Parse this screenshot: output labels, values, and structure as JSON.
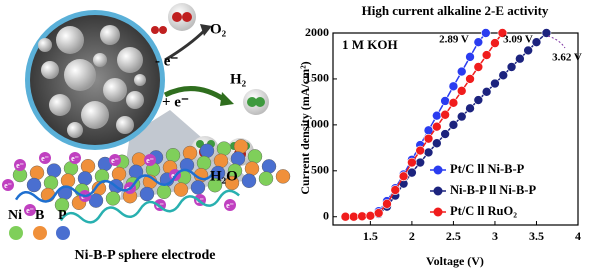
{
  "illustration": {
    "minus_e": "- e⁻",
    "plus_e": "+ e⁻",
    "o2": "O₂",
    "h2": "H₂",
    "h2o": "H₂O",
    "electron": "e⁻",
    "legend": [
      "Ni",
      "B",
      "P"
    ],
    "caption": "Ni-B-P sphere electrode"
  },
  "chart_data": {
    "type": "line",
    "title": "High current alkaline 2-E activity",
    "x_label": "Voltage (V)",
    "y_label": "Current density (mA/cm²)",
    "annotations": [
      "1 M KOH",
      "2.89 V",
      "3.09 V",
      "3.62 V"
    ],
    "xlim": [
      1.05,
      4.0
    ],
    "xticks": [
      1.5,
      2.0,
      2.5,
      3.0,
      3.5,
      4.0
    ],
    "ylim": [
      -90,
      2000
    ],
    "yticks": [
      0,
      500,
      1000,
      1500,
      2000
    ],
    "series": [
      {
        "name": "Pt/C ll Ni-B-P",
        "color": "#2a3cf0",
        "x": [
          1.2,
          1.3,
          1.4,
          1.5,
          1.6,
          1.7,
          1.8,
          1.9,
          2.0,
          2.1,
          2.2,
          2.3,
          2.4,
          2.5,
          2.6,
          2.7,
          2.8,
          2.89
        ],
        "values": [
          0,
          0,
          5,
          15,
          60,
          170,
          310,
          460,
          620,
          780,
          940,
          1100,
          1260,
          1420,
          1580,
          1740,
          1900,
          2000
        ]
      },
      {
        "name": "Ni-B-P ll Ni-B-P",
        "color": "#1c237e",
        "x": [
          1.2,
          1.3,
          1.4,
          1.5,
          1.6,
          1.7,
          1.8,
          1.9,
          2.0,
          2.1,
          2.2,
          2.3,
          2.4,
          2.5,
          2.6,
          2.7,
          2.8,
          2.9,
          3.0,
          3.1,
          3.2,
          3.3,
          3.4,
          3.5,
          3.62
        ],
        "values": [
          0,
          0,
          5,
          10,
          30,
          110,
          230,
          360,
          480,
          590,
          700,
          800,
          900,
          1000,
          1090,
          1180,
          1270,
          1360,
          1450,
          1540,
          1630,
          1720,
          1810,
          1900,
          2000
        ]
      },
      {
        "name": "Pt/C ll RuO₂",
        "color": "#f01c1c",
        "x": [
          1.2,
          1.3,
          1.4,
          1.5,
          1.6,
          1.7,
          1.8,
          1.9,
          2.0,
          2.1,
          2.2,
          2.3,
          2.4,
          2.5,
          2.6,
          2.7,
          2.8,
          2.9,
          3.0,
          3.09
        ],
        "values": [
          0,
          0,
          5,
          10,
          40,
          140,
          290,
          440,
          590,
          720,
          850,
          980,
          1110,
          1240,
          1370,
          1500,
          1630,
          1760,
          1890,
          2000
        ]
      }
    ]
  }
}
